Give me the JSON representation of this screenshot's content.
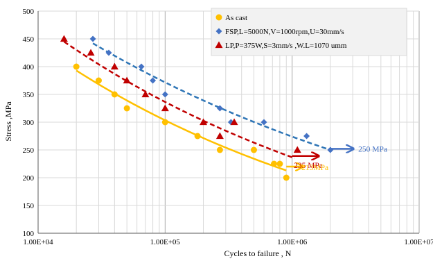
{
  "chart_data": {
    "type": "scatter",
    "title": "",
    "xlabel": "Cycles to failure , N",
    "ylabel": "Stress ,MPa",
    "xscale": "log",
    "xlim": [
      10000,
      10000000
    ],
    "ylim": [
      100,
      500
    ],
    "x_ticks": [
      "1.00E+04",
      "1.00E+05",
      "1.00E+06",
      "1.00E+07"
    ],
    "y_ticks": [
      "100",
      "150",
      "200",
      "250",
      "300",
      "350",
      "400",
      "450",
      "500"
    ],
    "grid": true,
    "legend_position": "top-right",
    "series": [
      {
        "name": "As cast",
        "marker": "circle",
        "color": "#FFC000",
        "trendline_color": "#FFC000",
        "trendline_style": "solid",
        "points": [
          {
            "x": 20000,
            "y": 400
          },
          {
            "x": 30000,
            "y": 375
          },
          {
            "x": 40000,
            "y": 350
          },
          {
            "x": 50000,
            "y": 325
          },
          {
            "x": 100000,
            "y": 300
          },
          {
            "x": 180000,
            "y": 275
          },
          {
            "x": 270000,
            "y": 250
          },
          {
            "x": 500000,
            "y": 250
          },
          {
            "x": 720000,
            "y": 225
          },
          {
            "x": 800000,
            "y": 225
          },
          {
            "x": 900000,
            "y": 200
          }
        ],
        "trendline": [
          [
            20000,
            393
          ],
          [
            900000,
            213
          ]
        ]
      },
      {
        "name": "FSP,L=5000N,V=1000rpm,U=30mm/s",
        "marker": "diamond",
        "color": "#4472C4",
        "trendline_color": "#2E75B6",
        "trendline_style": "dashed",
        "points": [
          {
            "x": 27000,
            "y": 450
          },
          {
            "x": 36000,
            "y": 425
          },
          {
            "x": 65000,
            "y": 400
          },
          {
            "x": 80000,
            "y": 375
          },
          {
            "x": 100000,
            "y": 350
          },
          {
            "x": 270000,
            "y": 325
          },
          {
            "x": 330000,
            "y": 300
          },
          {
            "x": 600000,
            "y": 300
          },
          {
            "x": 1300000,
            "y": 275
          },
          {
            "x": 2000000,
            "y": 250
          }
        ],
        "trendline": [
          [
            27000,
            442
          ],
          [
            2000000,
            250
          ]
        ]
      },
      {
        "name": "LP,P=375W,S=3mm/s ,W.L=1070 umm",
        "marker": "triangle",
        "color": "#C00000",
        "trendline_color": "#C00000",
        "trendline_style": "dashed",
        "points": [
          {
            "x": 16000,
            "y": 450
          },
          {
            "x": 26000,
            "y": 425
          },
          {
            "x": 40000,
            "y": 400
          },
          {
            "x": 50000,
            "y": 375
          },
          {
            "x": 70000,
            "y": 350
          },
          {
            "x": 100000,
            "y": 325
          },
          {
            "x": 200000,
            "y": 300
          },
          {
            "x": 270000,
            "y": 275
          },
          {
            "x": 350000,
            "y": 300
          },
          {
            "x": 1100000,
            "y": 250
          }
        ],
        "trendline": [
          [
            16000,
            445
          ],
          [
            1050000,
            235
          ]
        ]
      }
    ],
    "annotations": [
      {
        "text": "250 MPa",
        "color": "#4472C4",
        "arrow_from": [
          2000000,
          252
        ],
        "arrow_to": [
          3000000,
          252
        ]
      },
      {
        "text": "235 MPa",
        "color": "#C00000",
        "arrow_from": [
          1000000,
          239
        ],
        "arrow_to": [
          1600000,
          239
        ]
      },
      {
        "text": "213MPa",
        "color": "#FFC000",
        "arrow_from": [
          900000,
          220
        ],
        "arrow_to": [
          1200000,
          220
        ]
      }
    ]
  }
}
